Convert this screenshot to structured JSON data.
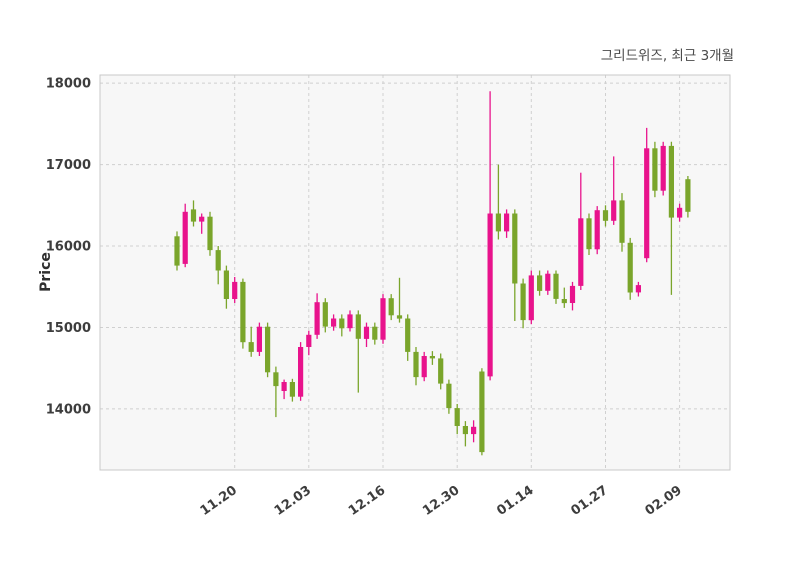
{
  "title": "그리드위즈, 최근 3개월",
  "chart_data": {
    "type": "candlestick",
    "title": "그리드위즈, 최근 3개월",
    "ylabel": "Price",
    "legend": "none",
    "grid": "dashed",
    "ylim": [
      13250,
      18100
    ],
    "yticks": [
      14000,
      15000,
      16000,
      17000,
      18000
    ],
    "xticks": [
      {
        "index": 7,
        "label": "11.20"
      },
      {
        "index": 16,
        "label": "12.03"
      },
      {
        "index": 25,
        "label": "12.16"
      },
      {
        "index": 34,
        "label": "12.30"
      },
      {
        "index": 43,
        "label": "01.14"
      },
      {
        "index": 52,
        "label": "01.27"
      },
      {
        "index": 61,
        "label": "02.09"
      }
    ],
    "colors": {
      "up": "#e8138c",
      "down": "#7aa52b",
      "grid": "#d0d0d0",
      "plot_bg": "#f7f7f7",
      "frame": "#c8c8c8",
      "tick_text": "#3d3d3d"
    },
    "candles": [
      [
        16120,
        16180,
        15700,
        15760
      ],
      [
        15780,
        16520,
        15740,
        16420
      ],
      [
        16450,
        16560,
        16240,
        16300
      ],
      [
        16300,
        16400,
        16150,
        16360
      ],
      [
        16360,
        16420,
        15880,
        15950
      ],
      [
        15950,
        16000,
        15530,
        15700
      ],
      [
        15700,
        15760,
        15230,
        15350
      ],
      [
        15350,
        15620,
        15300,
        15560
      ],
      [
        15560,
        15600,
        14740,
        14820
      ],
      [
        14820,
        15010,
        14640,
        14700
      ],
      [
        14700,
        15060,
        14650,
        15010
      ],
      [
        15010,
        15060,
        14390,
        14450
      ],
      [
        14450,
        14520,
        13900,
        14280
      ],
      [
        14220,
        14360,
        14120,
        14330
      ],
      [
        14330,
        14370,
        14090,
        14150
      ],
      [
        14150,
        14820,
        14100,
        14760
      ],
      [
        14760,
        14960,
        14660,
        14910
      ],
      [
        14910,
        15420,
        14860,
        15310
      ],
      [
        15310,
        15360,
        14940,
        15010
      ],
      [
        15010,
        15160,
        14960,
        15110
      ],
      [
        15110,
        15160,
        14890,
        14990
      ],
      [
        14990,
        15210,
        14950,
        15160
      ],
      [
        15160,
        15210,
        14200,
        14860
      ],
      [
        14860,
        15060,
        14760,
        15010
      ],
      [
        15010,
        15060,
        14790,
        14850
      ],
      [
        14850,
        15410,
        14800,
        15360
      ],
      [
        15360,
        15410,
        15090,
        15150
      ],
      [
        15150,
        15610,
        15060,
        15110
      ],
      [
        15110,
        15160,
        14590,
        14700
      ],
      [
        14700,
        14760,
        14290,
        14390
      ],
      [
        14390,
        14700,
        14340,
        14650
      ],
      [
        14650,
        14710,
        14540,
        14620
      ],
      [
        14620,
        14680,
        14240,
        14310
      ],
      [
        14310,
        14360,
        13940,
        14010
      ],
      [
        14010,
        14060,
        13690,
        13790
      ],
      [
        13790,
        13850,
        13540,
        13690
      ],
      [
        13690,
        13860,
        13590,
        13780
      ],
      [
        14460,
        14500,
        13430,
        13470
      ],
      [
        14400,
        17900,
        14350,
        16400
      ],
      [
        16400,
        17000,
        16080,
        16180
      ],
      [
        16180,
        16450,
        16100,
        16400
      ],
      [
        16400,
        16450,
        15080,
        15540
      ],
      [
        15540,
        15600,
        14990,
        15090
      ],
      [
        15090,
        15700,
        15040,
        15640
      ],
      [
        15640,
        15700,
        15390,
        15450
      ],
      [
        15450,
        15700,
        15400,
        15660
      ],
      [
        15660,
        15700,
        15290,
        15350
      ],
      [
        15350,
        15490,
        15240,
        15300
      ],
      [
        15300,
        15560,
        15210,
        15510
      ],
      [
        15510,
        16900,
        15460,
        16340
      ],
      [
        16340,
        16400,
        15890,
        15960
      ],
      [
        15960,
        16490,
        15900,
        16440
      ],
      [
        16440,
        16500,
        16240,
        16310
      ],
      [
        16310,
        17100,
        16260,
        16560
      ],
      [
        16560,
        16650,
        15930,
        16040
      ],
      [
        16040,
        16100,
        15340,
        15430
      ],
      [
        15430,
        15560,
        15380,
        15520
      ],
      [
        15850,
        17450,
        15800,
        17200
      ],
      [
        17200,
        17280,
        16600,
        16680
      ],
      [
        16680,
        17280,
        16620,
        17230
      ],
      [
        17230,
        17280,
        15400,
        16350
      ],
      [
        16350,
        16520,
        16300,
        16470
      ],
      [
        16820,
        16860,
        16350,
        16420
      ]
    ]
  }
}
